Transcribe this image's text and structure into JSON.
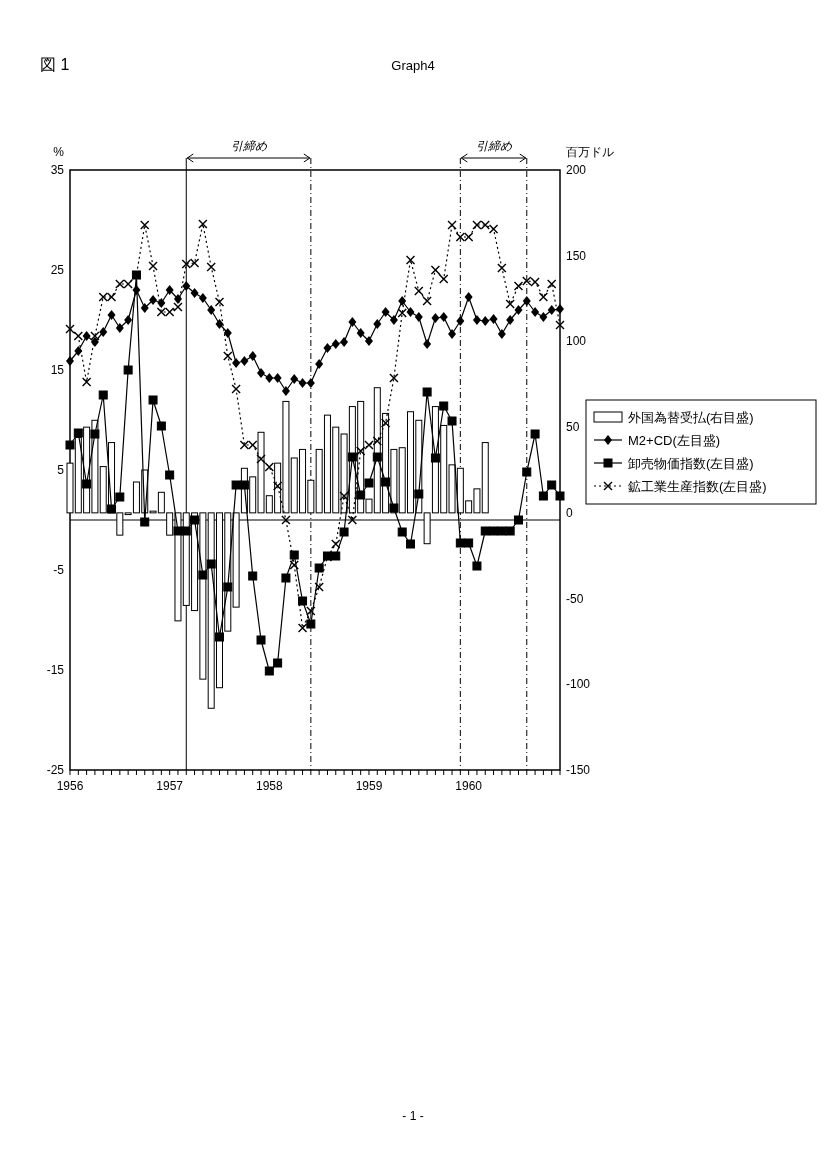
{
  "chart_data": {
    "type": "line",
    "title": "図 1",
    "subtitle": "Graph4",
    "ylabel": "%",
    "y2label": "百万ドル",
    "annotations": [
      "引締め",
      "引締め",
      "- 1 -"
    ],
    "x": [
      "1956-01",
      "1956-02",
      "1956-03",
      "1956-04",
      "1956-05",
      "1956-06",
      "1956-07",
      "1956-08",
      "1956-09",
      "1956-10",
      "1956-11",
      "1956-12",
      "1957-01",
      "1957-02",
      "1957-03",
      "1957-04",
      "1957-05",
      "1957-06",
      "1957-07",
      "1957-08",
      "1957-09",
      "1957-10",
      "1957-11",
      "1957-12",
      "1958-01",
      "1958-02",
      "1958-03",
      "1958-04",
      "1958-05",
      "1958-06",
      "1958-07",
      "1958-08",
      "1958-09",
      "1958-10",
      "1958-11",
      "1958-12",
      "1959-01",
      "1959-02",
      "1959-03",
      "1959-04",
      "1959-05",
      "1959-06",
      "1959-07",
      "1959-08",
      "1959-09",
      "1959-10",
      "1959-11",
      "1959-12",
      "1960-01",
      "1960-02",
      "1960-03",
      "1960-04",
      "1960-05",
      "1960-06",
      "1960-07",
      "1960-08",
      "1960-09",
      "1960-10",
      "1960-11",
      "1960-12"
    ],
    "xlim": [
      "1956-01",
      "1960-12"
    ],
    "xticks": [
      {
        "value": "1956-01",
        "label": "1956"
      },
      {
        "value": "1956-02",
        "label": null
      },
      {
        "value": "1956-03",
        "label": null
      },
      {
        "value": "1956-04",
        "label": null
      },
      {
        "value": "1956-05",
        "label": null
      },
      {
        "value": "1956-06",
        "label": null
      },
      {
        "value": "1956-07",
        "label": null
      },
      {
        "value": "1956-08",
        "label": null
      },
      {
        "value": "1956-09",
        "label": null
      },
      {
        "value": "1956-10",
        "label": null
      },
      {
        "value": "1956-11",
        "label": null
      },
      {
        "value": "1956-12",
        "label": null
      },
      {
        "value": "1957-01",
        "label": "1957"
      },
      {
        "value": "1957-02",
        "label": null
      },
      {
        "value": "1957-03",
        "label": null
      },
      {
        "value": "1957-04",
        "label": null
      },
      {
        "value": "1957-05",
        "label": null
      },
      {
        "value": "1957-06",
        "label": null
      },
      {
        "value": "1957-07",
        "label": null
      },
      {
        "value": "1957-08",
        "label": null
      },
      {
        "value": "1957-09",
        "label": null
      },
      {
        "value": "1957-10",
        "label": null
      },
      {
        "value": "1957-11",
        "label": null
      },
      {
        "value": "1957-12",
        "label": null
      },
      {
        "value": "1958-01",
        "label": "1958"
      },
      {
        "value": "1958-02",
        "label": null
      },
      {
        "value": "1958-03",
        "label": null
      },
      {
        "value": "1958-04",
        "label": null
      },
      {
        "value": "1958-05",
        "label": null
      },
      {
        "value": "1958-06",
        "label": null
      },
      {
        "value": "1958-07",
        "label": null
      },
      {
        "value": "1958-08",
        "label": null
      },
      {
        "value": "1958-09",
        "label": null
      },
      {
        "value": "1958-10",
        "label": null
      },
      {
        "value": "1958-11",
        "label": null
      },
      {
        "value": "1958-12",
        "label": null
      },
      {
        "value": "1959-01",
        "label": "1959"
      },
      {
        "value": "1959-02",
        "label": null
      },
      {
        "value": "1959-03",
        "label": null
      },
      {
        "value": "1959-04",
        "label": null
      },
      {
        "value": "1959-05",
        "label": null
      },
      {
        "value": "1959-06",
        "label": null
      },
      {
        "value": "1959-07",
        "label": null
      },
      {
        "value": "1959-08",
        "label": null
      },
      {
        "value": "1959-09",
        "label": null
      },
      {
        "value": "1959-10",
        "label": null
      },
      {
        "value": "1959-11",
        "label": null
      },
      {
        "value": "1959-12",
        "label": null
      },
      {
        "value": "1960-01",
        "label": "1960"
      },
      {
        "value": "1960-02",
        "label": null
      },
      {
        "value": "1960-03",
        "label": null
      },
      {
        "value": "1960-04",
        "label": null
      },
      {
        "value": "1960-05",
        "label": null
      },
      {
        "value": "1960-06",
        "label": null
      },
      {
        "value": "1960-07",
        "label": null
      },
      {
        "value": "1960-08",
        "label": null
      },
      {
        "value": "1960-09",
        "label": null
      },
      {
        "value": "1960-10",
        "label": null
      },
      {
        "value": "1960-11",
        "label": null
      },
      {
        "value": "1960-12",
        "label": null
      }
    ],
    "ylim": [
      -25,
      35
    ],
    "yticks": [
      35,
      25,
      15,
      5,
      -5,
      -15,
      -25
    ],
    "y2lim": [
      -150,
      200
    ],
    "y2ticks": [
      200,
      150,
      100,
      50,
      0,
      -50,
      -100,
      -150
    ],
    "legend": "right",
    "ref_lines": [
      {
        "axis": "y",
        "value": 0,
        "line_style": "solid"
      },
      {
        "axis": "x",
        "value": "1957-03",
        "line_style": "solid"
      },
      {
        "axis": "x",
        "value": "1958-06",
        "line_style": "dashed"
      },
      {
        "axis": "x",
        "value": "1959-12",
        "line_style": "dashed"
      },
      {
        "axis": "x",
        "value": "1960-08",
        "line_style": "dashed"
      }
    ],
    "series": [
      {
        "name": "外国為替受払(右目盛)",
        "type": "bar",
        "axis": "y2",
        "color": "#ffffff",
        "values": [
          29,
          44,
          50,
          54,
          27,
          41,
          -13,
          -1,
          18,
          25,
          1,
          12,
          -13,
          -63,
          -54,
          -57,
          -97,
          -114,
          -102,
          -69,
          -55,
          26,
          21,
          47,
          10,
          29,
          65,
          32,
          37,
          19,
          37,
          57,
          50,
          46,
          62,
          65,
          8,
          73,
          58,
          37,
          38,
          59,
          54,
          -18,
          62,
          51,
          28,
          26,
          7,
          14,
          41,
          null,
          null,
          null,
          null,
          null,
          null,
          null,
          null,
          null
        ]
      },
      {
        "name": "M2+CD(左目盛)",
        "color": "#000000",
        "marker": "diamond",
        "line_style": "solid",
        "values": [
          15.9,
          16.9,
          18.4,
          17.8,
          18.8,
          20.5,
          19.2,
          20.0,
          23.0,
          21.2,
          22.0,
          21.7,
          23.0,
          22.1,
          23.4,
          22.7,
          22.2,
          21.0,
          19.6,
          18.7,
          15.7,
          15.9,
          16.4,
          14.7,
          14.2,
          14.2,
          12.9,
          14.1,
          13.7,
          13.7,
          15.6,
          17.2,
          17.6,
          17.8,
          19.8,
          18.7,
          17.9,
          19.6,
          20.8,
          20.0,
          21.9,
          20.8,
          20.3,
          17.6,
          20.2,
          20.3,
          18.6,
          19.9,
          22.3,
          20.0,
          19.9,
          20.1,
          18.6,
          20.0,
          21.0,
          21.9,
          20.8,
          20.3,
          21.0,
          21.1
        ]
      },
      {
        "name": "卸売物価指数(左目盛)",
        "color": "#000000",
        "marker": "square",
        "line_style": "solid",
        "values": [
          7.5,
          8.7,
          3.6,
          8.6,
          12.5,
          1.1,
          2.3,
          15.0,
          24.5,
          -0.2,
          12.0,
          9.4,
          4.5,
          -1.1,
          -1.1,
          0.0,
          -5.5,
          -4.4,
          -11.7,
          -6.7,
          3.5,
          3.5,
          -5.6,
          -12.0,
          -15.1,
          -14.3,
          -5.8,
          -3.5,
          -8.1,
          -10.4,
          -4.8,
          -3.6,
          -3.6,
          -1.2,
          6.3,
          2.5,
          3.7,
          6.3,
          3.8,
          1.2,
          -1.2,
          -2.4,
          2.6,
          12.8,
          6.2,
          11.4,
          9.9,
          -2.3,
          -2.3,
          -4.6,
          -1.1,
          -1.1,
          -1.1,
          -1.1,
          0.0,
          4.8,
          8.6,
          2.4,
          3.5,
          2.4
        ]
      },
      {
        "name": "鉱工業生産指数(左目盛)",
        "color": "#000000",
        "marker": "cross",
        "line_style": "dotted",
        "values": [
          19.1,
          18.4,
          13.8,
          18.4,
          22.3,
          22.3,
          23.6,
          23.6,
          24.5,
          29.5,
          25.4,
          20.8,
          20.8,
          21.3,
          25.6,
          25.7,
          29.6,
          25.3,
          21.8,
          16.4,
          13.1,
          7.5,
          7.5,
          6.1,
          5.3,
          3.4,
          0.0,
          -4.5,
          -10.8,
          -9.1,
          -6.7,
          -3.7,
          -2.4,
          2.4,
          0.0,
          6.9,
          7.5,
          7.9,
          9.7,
          14.2,
          20.7,
          26.0,
          22.9,
          21.9,
          25.0,
          24.1,
          29.5,
          28.3,
          28.3,
          29.5,
          29.5,
          29.1,
          25.2,
          21.6,
          23.4,
          23.9,
          23.8,
          22.3,
          23.6,
          19.5
        ]
      }
    ]
  }
}
